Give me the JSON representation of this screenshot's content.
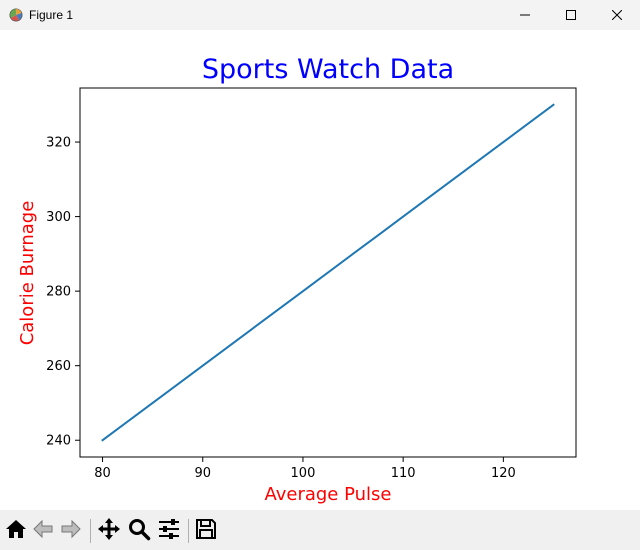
{
  "window": {
    "title": "Figure 1"
  },
  "icons": {
    "app": "matplotlib-figure-icon",
    "minimize": "minimize-icon",
    "maximize": "maximize-icon",
    "close": "close-icon",
    "home": "home-icon",
    "back": "back-arrow-icon",
    "forward": "forward-arrow-icon",
    "pan": "pan-move-icon",
    "zoom": "zoom-magnifier-icon",
    "configure": "configure-subplots-icon",
    "save": "save-floppy-icon"
  },
  "colors": {
    "title": "#0000ff",
    "axis_label": "#ff0000",
    "line": "#1f77b4",
    "toolbar_bg": "#f0f0f0"
  },
  "chart_data": {
    "type": "line",
    "title": "Sports Watch Data",
    "xlabel": "Average Pulse",
    "ylabel": "Calorie Burnage",
    "x": [
      80,
      85,
      90,
      95,
      100,
      105,
      110,
      115,
      120,
      125
    ],
    "series": [
      {
        "values": [
          240,
          250,
          260,
          270,
          280,
          290,
          300,
          310,
          320,
          330
        ]
      }
    ],
    "xticks": [
      80,
      90,
      100,
      110,
      120
    ],
    "yticks": [
      240,
      260,
      280,
      300,
      320
    ],
    "xlim": [
      77.75,
      127.25
    ],
    "ylim": [
      235.5,
      334.5
    ],
    "grid": false,
    "legend": "none"
  }
}
